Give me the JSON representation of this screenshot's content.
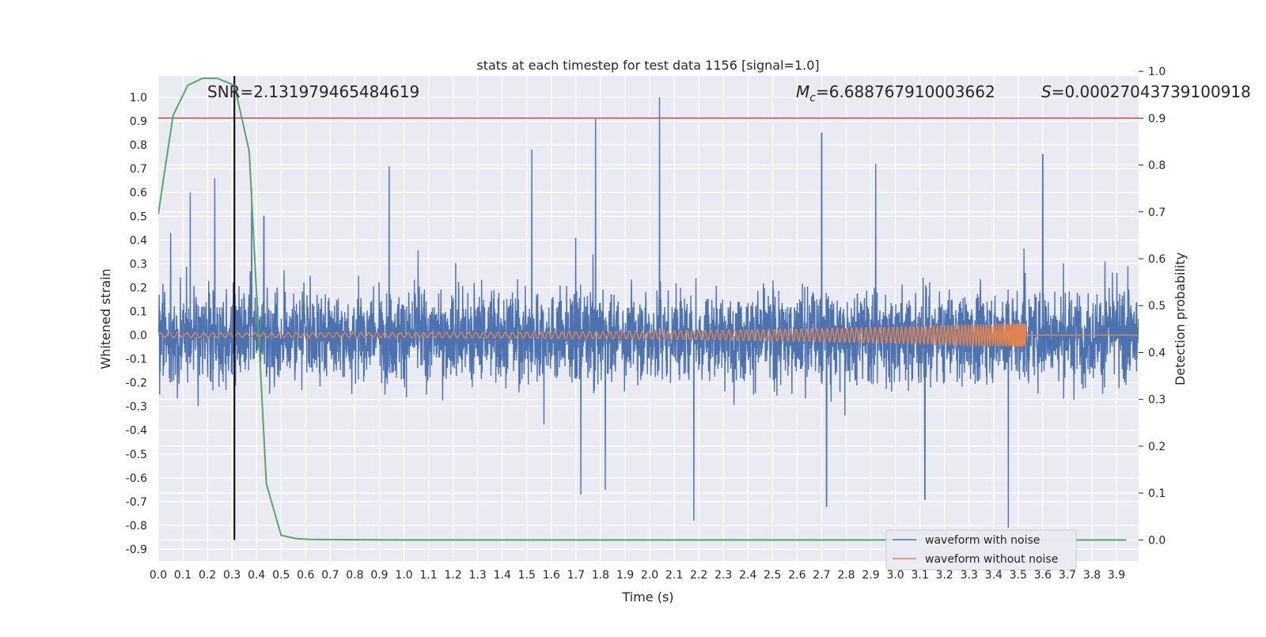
{
  "chart_data": {
    "type": "line",
    "title": "stats at each timestep for test data 1156 [signal=1.0]",
    "xlabel": "Time (s)",
    "ylabel": "Whitened strain",
    "y2label": "Detection probability",
    "xlim": [
      0.0,
      3.99
    ],
    "ylim": [
      -0.95,
      1.09
    ],
    "y2lim": [
      -0.045,
      0.99
    ],
    "xticks": [
      0.0,
      0.1,
      0.2,
      0.3,
      0.4,
      0.5,
      0.6,
      0.7,
      0.8,
      0.9,
      1.0,
      1.1,
      1.2,
      1.3,
      1.4,
      1.5,
      1.6,
      1.7,
      1.8,
      1.9,
      2.0,
      2.1,
      2.2,
      2.3,
      2.4,
      2.5,
      2.6,
      2.7,
      2.8,
      2.9,
      3.0,
      3.1,
      3.2,
      3.3,
      3.4,
      3.5,
      3.6,
      3.7,
      3.8,
      3.9
    ],
    "xtick_labels": [
      "0.0",
      "0.1",
      "0.2",
      "0.3",
      "0.4",
      "0.5",
      "0.6",
      "0.7",
      "0.8",
      "0.9",
      "1.0",
      "1.1",
      "1.2",
      "1.3",
      "1.4",
      "1.5",
      "1.6",
      "1.7",
      "1.8",
      "1.9",
      "2.0",
      "2.1",
      "2.2",
      "2.3",
      "2.4",
      "2.5",
      "2.6",
      "2.7",
      "2.8",
      "2.9",
      "3.0",
      "3.1",
      "3.2",
      "3.3",
      "3.4",
      "3.5",
      "3.6",
      "3.7",
      "3.8",
      "3.9"
    ],
    "yticks": [
      -0.9,
      -0.8,
      -0.7,
      -0.6,
      -0.5,
      -0.4,
      -0.3,
      -0.2,
      -0.1,
      0.0,
      0.1,
      0.2,
      0.3,
      0.4,
      0.5,
      0.6,
      0.7,
      0.8,
      0.9,
      1.0
    ],
    "ytick_labels": [
      "-0.9",
      "-0.8",
      "-0.7",
      "-0.6",
      "-0.5",
      "-0.4",
      "-0.3",
      "-0.2",
      "-0.1",
      "0.0",
      "0.1",
      "0.2",
      "0.3",
      "0.4",
      "0.5",
      "0.6",
      "0.7",
      "0.8",
      "0.9",
      "1.0"
    ],
    "y2ticks": [
      0.0,
      0.1,
      0.2,
      0.3,
      0.4,
      0.5,
      0.6,
      0.7,
      0.8,
      0.9,
      1.0
    ],
    "y2tick_labels": [
      "0.0",
      "0.1",
      "0.2",
      "0.3",
      "0.4",
      "0.5",
      "0.6",
      "0.7",
      "0.8",
      "0.9",
      "1.0"
    ],
    "grid": true,
    "legend_position": "bottom-right",
    "annotations": {
      "snr": "SNR=2.131979465484619",
      "mc_symbol": "M",
      "mc_sub": "c",
      "mc_value": "=6.688767910003662",
      "s_symbol": "S",
      "s_value": "=0.00027043739100918"
    },
    "threshold_y": 0.9,
    "marker_x": 0.31,
    "series": [
      {
        "name": "waveform with noise",
        "color": "#4c72b0",
        "style": "dense noise around 0 with amplitude about 0.25; spikes up to about 1.0",
        "x_range": [
          0.0,
          3.99
        ],
        "spikes": [
          {
            "x": 0.05,
            "y": 0.43
          },
          {
            "x": 0.13,
            "y": 0.6
          },
          {
            "x": 0.23,
            "y": 0.66
          },
          {
            "x": 0.38,
            "y": 0.62
          },
          {
            "x": 0.43,
            "y": 0.5
          },
          {
            "x": 0.94,
            "y": 0.71
          },
          {
            "x": 1.52,
            "y": 0.78
          },
          {
            "x": 1.78,
            "y": 0.91
          },
          {
            "x": 2.04,
            "y": 1.0
          },
          {
            "x": 2.7,
            "y": 0.85
          },
          {
            "x": 2.92,
            "y": 0.72
          },
          {
            "x": 3.6,
            "y": 0.76
          },
          {
            "x": 1.72,
            "y": -0.67
          },
          {
            "x": 1.82,
            "y": -0.65
          },
          {
            "x": 2.18,
            "y": -0.78
          },
          {
            "x": 2.72,
            "y": -0.72
          },
          {
            "x": 3.12,
            "y": -0.69
          },
          {
            "x": 3.46,
            "y": -0.81
          }
        ],
        "dips": [
          0.89,
          1.88,
          2.18
        ]
      },
      {
        "name": "waveform without noise",
        "color": "#dd8452",
        "style": "chirp with increasing frequency; amplitude about 0.01 at start growing to about 0.05 near 3.53 s, then flat 0",
        "x_range": [
          0.0,
          3.99
        ],
        "merger_time": 3.53,
        "amplitude_start": 0.01,
        "amplitude_end": 0.05
      },
      {
        "name": "Detection probability",
        "color": "#55a868",
        "axis": "right",
        "x": [
          0.0,
          0.06,
          0.12,
          0.18,
          0.24,
          0.31,
          0.37,
          0.44,
          0.5,
          0.56,
          0.62,
          1.0,
          2.0,
          3.0,
          3.94
        ],
        "y": [
          0.695,
          0.905,
          0.97,
          0.985,
          0.985,
          0.97,
          0.83,
          0.12,
          0.01,
          0.003,
          0.001,
          0.0,
          0.0,
          0.0,
          0.0
        ]
      }
    ]
  }
}
